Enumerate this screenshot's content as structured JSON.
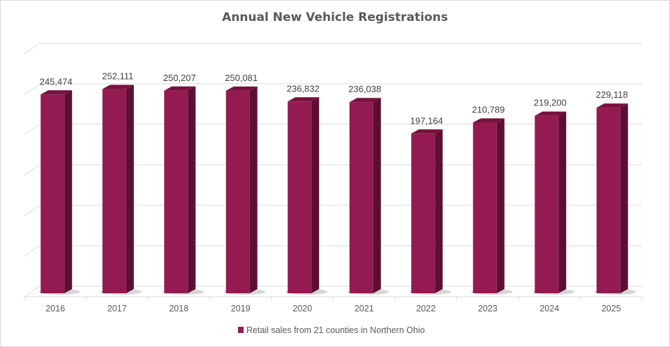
{
  "chart_data": {
    "type": "bar",
    "style": "3d-column",
    "title": "Annual New Vehicle Registrations",
    "categories": [
      "2016",
      "2017",
      "2018",
      "2019",
      "2020",
      "2021",
      "2022",
      "2023",
      "2024",
      "2025"
    ],
    "series": [
      {
        "name": "Retail sales from 21 counties in Northern Ohio",
        "values": [
          245474,
          252111,
          250207,
          250081,
          236832,
          236038,
          197164,
          210789,
          219200,
          229118
        ],
        "data_labels": [
          "245,474",
          "252,111",
          "250,207",
          "250,081",
          "236,832",
          "236,038",
          "197,164",
          "210,789",
          "219,200",
          "229,118"
        ]
      }
    ],
    "xlabel": "",
    "ylabel": "",
    "ylim": [
      0,
      300000
    ],
    "y_gridline_step": 50000,
    "y_tick_labels_shown": false,
    "grid": true,
    "legend": "bottom",
    "colors": {
      "bar_front": "#941a52",
      "bar_side": "#5c0f33",
      "bar_top": "#78123f",
      "grid": "#d9d9d9"
    }
  }
}
